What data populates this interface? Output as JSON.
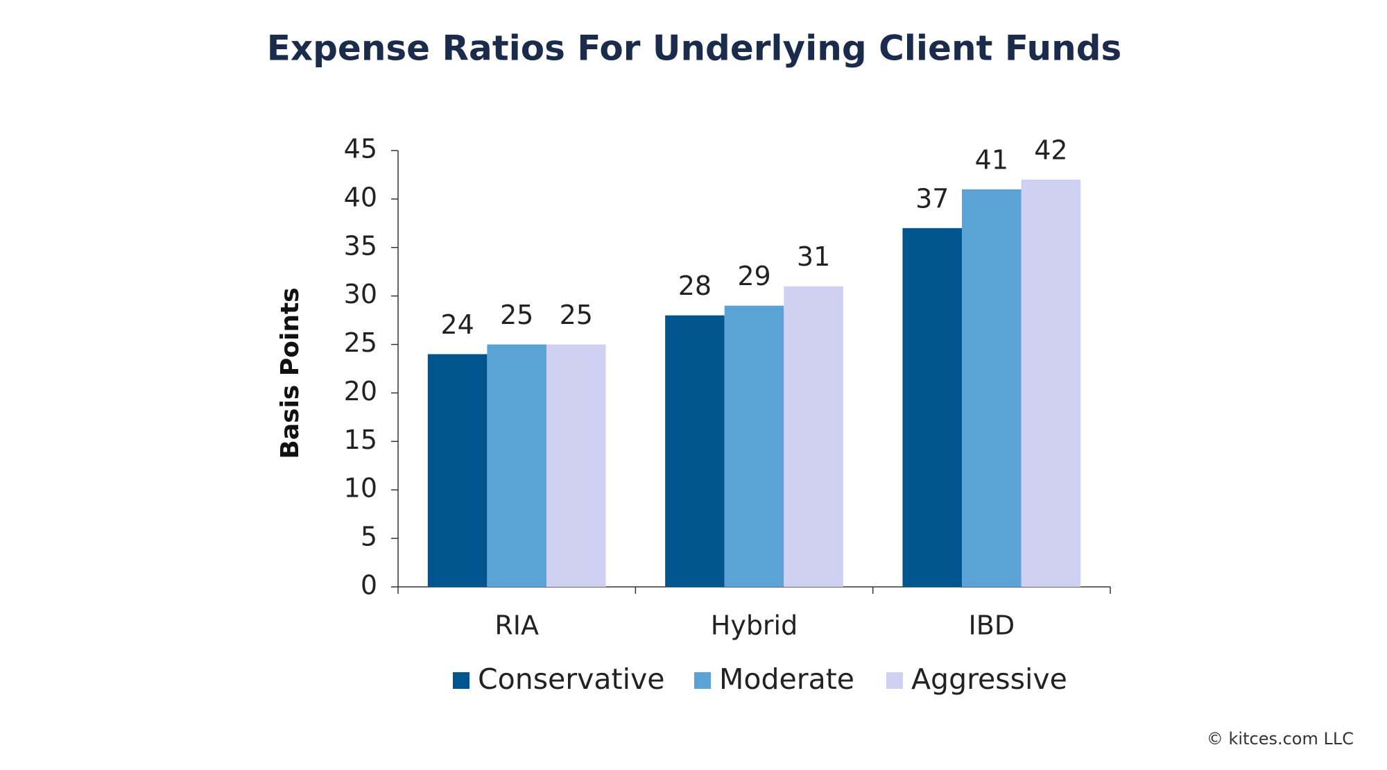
{
  "chart_data": {
    "type": "bar",
    "title": "Expense Ratios For Underlying Client Funds",
    "y_label": "Basis Points",
    "categories": [
      "RIA",
      "Hybrid",
      "IBD"
    ],
    "series": [
      {
        "name": "Conservative",
        "color": "#00558f",
        "values": [
          24,
          28,
          37
        ]
      },
      {
        "name": "Moderate",
        "color": "#5ba3d6",
        "values": [
          25,
          29,
          41
        ]
      },
      {
        "name": "Aggressive",
        "color": "#cfd0f2",
        "values": [
          25,
          31,
          42
        ]
      }
    ],
    "ylim": [
      0,
      45
    ],
    "yticks": [
      0,
      5,
      10,
      15,
      20,
      25,
      30,
      35,
      40,
      45
    ],
    "legend": "bottom",
    "source": "© kitces.com LLC"
  }
}
